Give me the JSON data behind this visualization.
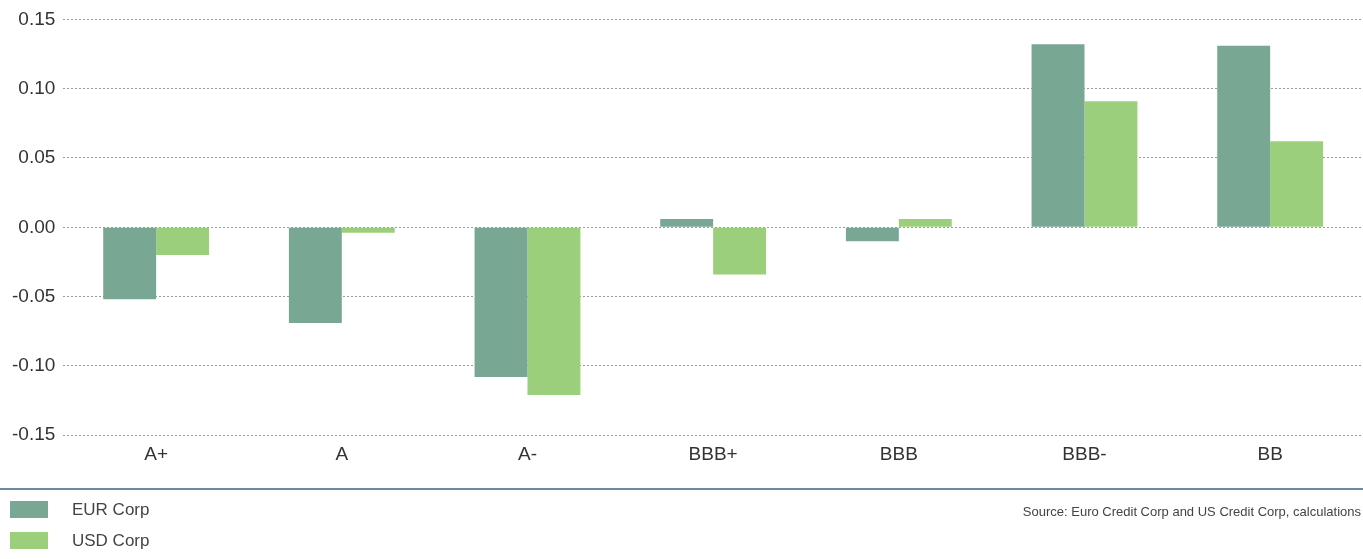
{
  "chart_data": {
    "type": "bar",
    "categories": [
      "A+",
      "A",
      "A-",
      "BBB+",
      "BBB",
      "BBB-",
      "BB"
    ],
    "series": [
      {
        "name": "EUR Corp",
        "color": "#78a794",
        "values": [
          -0.052,
          -0.069,
          -0.108,
          0.006,
          -0.01,
          0.132,
          0.131
        ]
      },
      {
        "name": "USD Corp",
        "color": "#9ccf7c",
        "values": [
          -0.02,
          -0.004,
          -0.121,
          -0.034,
          0.006,
          0.091,
          0.062
        ]
      }
    ],
    "ylim": [
      -0.15,
      0.15
    ],
    "yticks": [
      -0.15,
      {
        "value": -0.1,
        "label": "-0.10"
      },
      -0.05,
      {
        "value": 0,
        "label": "0.00"
      },
      0.05,
      {
        "value": 0.1,
        "label": "0.10"
      },
      0.15
    ],
    "grid": "y",
    "legend": "bottom left",
    "annotations": [
      "Source: Euro Credit Corp and US Credit Corp, calculations"
    ]
  }
}
